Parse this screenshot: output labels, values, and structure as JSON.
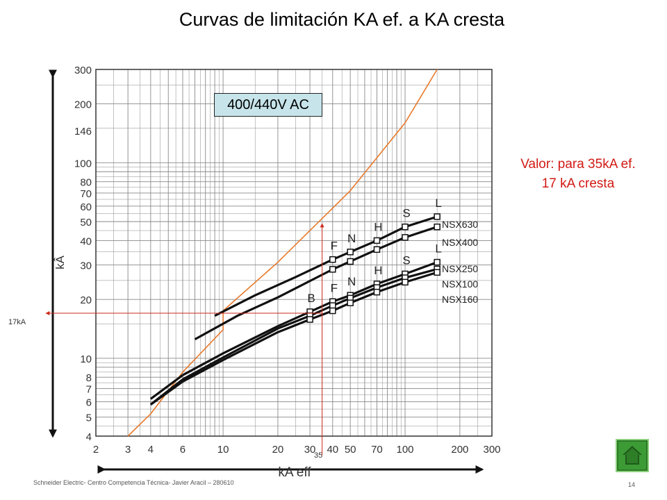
{
  "title": "Curvas de limitación KA ef. a KA cresta",
  "badge": "400/440V AC",
  "note": {
    "line1": "Valor: para 35kA ef.",
    "line2": "17 kA cresta"
  },
  "marker_y_label": "17kA",
  "marker_x_label": "35",
  "footer": "Schneider Electric- Centro Competencia Técnica- Javier Aracil – 280610",
  "page_number": "14",
  "home_icon": "home-icon",
  "colors": {
    "curve": "#111111",
    "reference": "#e8792b",
    "marker": "#cc2a1c",
    "grid": "#888888"
  },
  "chart_data": {
    "type": "line",
    "log_scale": {
      "x": true,
      "y": true
    },
    "xlabel": "kA eff",
    "ylabel": "kÂ",
    "xlim": [
      2,
      300
    ],
    "ylim": [
      4,
      300
    ],
    "x_ticks": [
      2,
      3,
      4,
      6,
      10,
      20,
      30,
      40,
      50,
      70,
      100,
      200,
      300
    ],
    "y_ticks": [
      4,
      5,
      6,
      7,
      8,
      10,
      20,
      30,
      40,
      50,
      60,
      70,
      80,
      100,
      146,
      200,
      300
    ],
    "grid": true,
    "reference_line": {
      "points": [
        [
          3,
          4
        ],
        [
          4,
          5.2
        ],
        [
          6,
          8.5
        ],
        [
          10,
          14
        ],
        [
          10,
          17.5
        ],
        [
          20,
          31
        ],
        [
          50,
          72
        ],
        [
          100,
          160
        ],
        [
          150,
          300
        ]
      ]
    },
    "series": [
      {
        "name": "NSX630",
        "x": [
          9,
          15,
          25,
          40,
          70,
          100,
          150
        ],
        "y": [
          16.5,
          21,
          26,
          32,
          40,
          47,
          53
        ]
      },
      {
        "name": "NSX400",
        "x": [
          7,
          12,
          20,
          40,
          70,
          100,
          150
        ],
        "y": [
          12.5,
          16.5,
          20.5,
          28.5,
          36,
          41.5,
          47
        ]
      },
      {
        "name": "NSX250",
        "x": [
          4,
          6,
          10,
          20,
          30,
          40,
          50,
          70,
          100,
          150
        ],
        "y": [
          6.2,
          8.2,
          10.6,
          14.6,
          17.3,
          19.5,
          21,
          24,
          27,
          31
        ]
      },
      {
        "name": "NSX100",
        "x": [
          4,
          6,
          10,
          20,
          30,
          40,
          50,
          70,
          100,
          150
        ],
        "y": [
          5.8,
          7.8,
          10.1,
          14.2,
          16.5,
          18.6,
          20.3,
          23,
          25.8,
          28.6
        ]
      },
      {
        "name": "NSX160",
        "x": [
          4,
          6,
          10,
          20,
          30,
          40,
          50,
          70,
          100,
          150
        ],
        "y": [
          5.8,
          7.6,
          9.8,
          13.6,
          15.8,
          17.5,
          19.2,
          21.8,
          24.5,
          27.5
        ]
      }
    ],
    "breaking_capacity_markers": {
      "upper": [
        {
          "label": "F",
          "x": 40
        },
        {
          "label": "N",
          "x": 50
        },
        {
          "label": "H",
          "x": 70
        },
        {
          "label": "S",
          "x": 100
        },
        {
          "label": "L",
          "x": 150
        }
      ],
      "lower": [
        {
          "label": "B",
          "x": 30
        },
        {
          "label": "F",
          "x": 40
        },
        {
          "label": "N",
          "x": 50
        },
        {
          "label": "H",
          "x": 70
        },
        {
          "label": "S",
          "x": 100
        },
        {
          "label": "L",
          "x": 150
        }
      ]
    },
    "highlight": {
      "x": 35,
      "y": 17
    }
  }
}
